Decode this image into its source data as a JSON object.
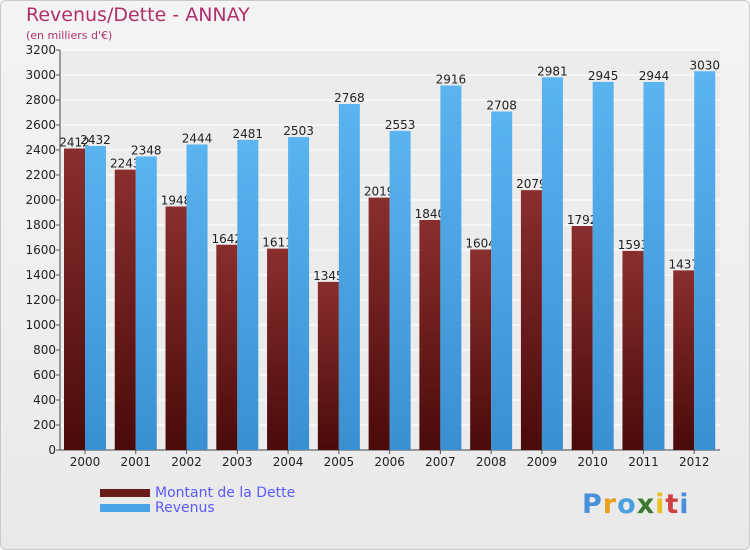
{
  "title": "Revenus/Dette - ANNAY",
  "subtitle": "(en milliers d'€)",
  "logo": {
    "text": "Proxiti",
    "letters": [
      "P",
      "r",
      "o",
      "x",
      "i",
      "t",
      "i"
    ],
    "colors": [
      "#4a8fd9",
      "#e8a020",
      "#4aa0e0",
      "#3a7a30",
      "#e8c020",
      "#d04040",
      "#4a8fd9"
    ]
  },
  "chart_data": {
    "type": "bar",
    "title": "Revenus/Dette - ANNAY",
    "subtitle": "(en milliers d'€)",
    "xlabel": "",
    "ylabel": "",
    "ylim": [
      0,
      3200
    ],
    "yticks": [
      0,
      200,
      400,
      600,
      800,
      1000,
      1200,
      1400,
      1600,
      1800,
      2000,
      2200,
      2400,
      2600,
      2800,
      3000,
      3200
    ],
    "categories": [
      "2000",
      "2001",
      "2002",
      "2003",
      "2004",
      "2005",
      "2006",
      "2007",
      "2008",
      "2009",
      "2010",
      "2011",
      "2012"
    ],
    "series": [
      {
        "name": "Montant de la Dette",
        "color": "#6b1a1a",
        "values": [
          2412,
          2243,
          1948,
          1642,
          1611,
          1345,
          2019,
          1840,
          1604,
          2079,
          1792,
          1593,
          1437
        ]
      },
      {
        "name": "Revenus",
        "color": "#4aa3e6",
        "values": [
          2432,
          2348,
          2444,
          2481,
          2503,
          2768,
          2553,
          2916,
          2708,
          2981,
          2945,
          2944,
          3030
        ]
      }
    ],
    "legend_position": "bottom-left",
    "grid": true
  }
}
